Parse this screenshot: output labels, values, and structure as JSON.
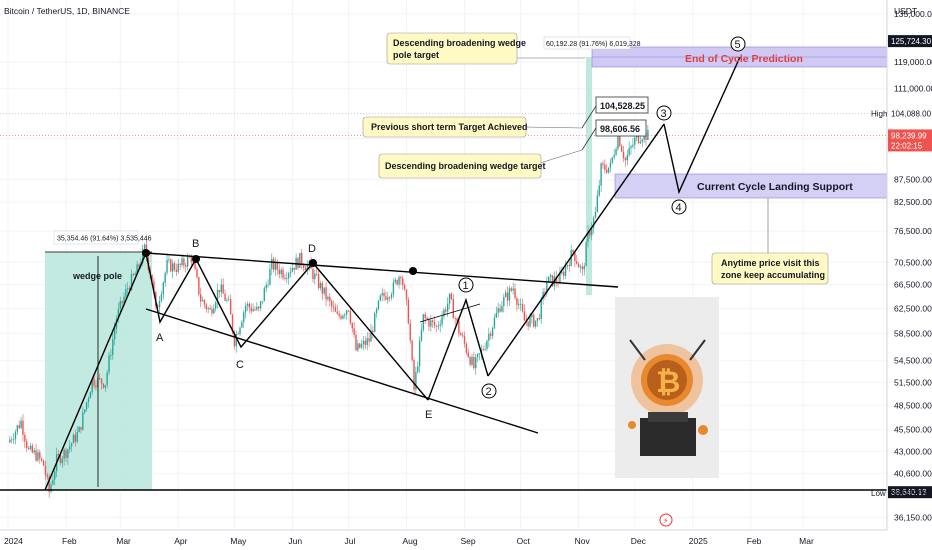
{
  "header": {
    "title": "Bitcoin / TetherUS, 1D, BINANCE"
  },
  "colors": {
    "up": "#26a69a",
    "down": "#ef5350",
    "zone": "#c9c4f0",
    "pole_fill": "#b7e4d8",
    "red_text": "#e53935",
    "label_bg": "#131722"
  },
  "chart_data": {
    "type": "candlestick",
    "y_scale": "log",
    "ylim": [
      35000,
      140000
    ],
    "currency": "USDT",
    "y_ticks": [
      "135,000.00",
      "119,000.00",
      "111,000.00",
      "97,500.00",
      "87,500.00",
      "82,500.00",
      "76,500.00",
      "70,500.00",
      "66,500.00",
      "62,500.00",
      "58,500.00",
      "54,500.00",
      "51,500.00",
      "48,500.00",
      "45,500.00",
      "43,000.00",
      "40,600.00",
      "36,150.00"
    ],
    "y_tick_values": [
      135000,
      119000,
      111000,
      97500,
      87500,
      82500,
      76500,
      70500,
      66500,
      62500,
      58500,
      54500,
      51500,
      48500,
      45500,
      43000,
      40600,
      36150
    ],
    "x_ticks": [
      "2024",
      "Feb",
      "Mar",
      "Apr",
      "May",
      "Jun",
      "Jul",
      "Aug",
      "Sep",
      "Oct",
      "Nov",
      "Dec",
      "2025",
      "Feb",
      "Mar"
    ],
    "x_tick_dates": [
      "2024-01-01",
      "2024-02-01",
      "2024-03-01",
      "2024-04-01",
      "2024-05-01",
      "2024-06-01",
      "2024-07-01",
      "2024-08-01",
      "2024-09-01",
      "2024-10-01",
      "2024-11-01",
      "2024-12-01",
      "2025-01-01",
      "2025-02-01",
      "2025-03-01"
    ],
    "price_labels": [
      {
        "value": 125724.3,
        "text": "125,724.30",
        "style": "dark"
      },
      {
        "value": 104088.0,
        "text": "104,088.00",
        "prefix": "High",
        "style": "plain"
      },
      {
        "value": 98239.99,
        "text": "98,239.99",
        "sub": "22:02:15",
        "style": "red"
      },
      {
        "value": 38640.13,
        "text": "38,640.13",
        "style": "dark"
      },
      {
        "value": 38555.0,
        "text": "38,555.00",
        "prefix": "Low",
        "style": "plain"
      }
    ],
    "closes": [
      [
        "2024-01-01",
        44000
      ],
      [
        "2024-01-08",
        46500
      ],
      [
        "2024-01-12",
        43000
      ],
      [
        "2024-01-16",
        42600
      ],
      [
        "2024-01-20",
        41500
      ],
      [
        "2024-01-23",
        38700
      ],
      [
        "2024-01-27",
        42000
      ],
      [
        "2024-02-01",
        43000
      ],
      [
        "2024-02-08",
        45300
      ],
      [
        "2024-02-15",
        51800
      ],
      [
        "2024-02-22",
        51500
      ],
      [
        "2024-02-28",
        61000
      ],
      [
        "2024-03-05",
        66000
      ],
      [
        "2024-03-10",
        69000
      ],
      [
        "2024-03-14",
        73000
      ],
      [
        "2024-03-18",
        67500
      ],
      [
        "2024-03-20",
        62000
      ],
      [
        "2024-03-26",
        70000
      ],
      [
        "2024-04-01",
        69500
      ],
      [
        "2024-04-08",
        71500
      ],
      [
        "2024-04-13",
        64000
      ],
      [
        "2024-04-18",
        62000
      ],
      [
        "2024-04-23",
        66000
      ],
      [
        "2024-04-28",
        63000
      ],
      [
        "2024-05-01",
        57500
      ],
      [
        "2024-05-07",
        63000
      ],
      [
        "2024-05-14",
        62000
      ],
      [
        "2024-05-21",
        70000
      ],
      [
        "2024-05-28",
        68500
      ],
      [
        "2024-06-05",
        71000
      ],
      [
        "2024-06-10",
        69500
      ],
      [
        "2024-06-18",
        65000
      ],
      [
        "2024-06-25",
        61000
      ],
      [
        "2024-07-01",
        62800
      ],
      [
        "2024-07-05",
        56000
      ],
      [
        "2024-07-12",
        57500
      ],
      [
        "2024-07-18",
        64000
      ],
      [
        "2024-07-25",
        66000
      ],
      [
        "2024-07-29",
        68800
      ],
      [
        "2024-08-02",
        61000
      ],
      [
        "2024-08-05",
        50500
      ],
      [
        "2024-08-10",
        61000
      ],
      [
        "2024-08-17",
        59500
      ],
      [
        "2024-08-24",
        64000
      ],
      [
        "2024-08-29",
        59000
      ],
      [
        "2024-09-06",
        53500
      ],
      [
        "2024-09-12",
        57000
      ],
      [
        "2024-09-20",
        63000
      ],
      [
        "2024-09-27",
        66000
      ],
      [
        "2024-10-03",
        60500
      ],
      [
        "2024-10-10",
        60500
      ],
      [
        "2024-10-15",
        67000
      ],
      [
        "2024-10-22",
        67500
      ],
      [
        "2024-10-29",
        72500
      ],
      [
        "2024-11-03",
        68500
      ],
      [
        "2024-11-06",
        75500
      ],
      [
        "2024-11-10",
        80000
      ],
      [
        "2024-11-13",
        90000
      ],
      [
        "2024-11-18",
        90500
      ],
      [
        "2024-11-22",
        98500
      ],
      [
        "2024-11-26",
        92000
      ],
      [
        "2024-12-01",
        97000
      ],
      [
        "2024-12-05",
        98500
      ],
      [
        "2024-12-08",
        98240
      ]
    ]
  },
  "patterns": {
    "wave_points": [
      "A",
      "B",
      "C",
      "D",
      "E"
    ],
    "elliott_points": [
      "1",
      "2",
      "3",
      "4",
      "5"
    ],
    "pole_label": "wedge pole",
    "pole_measure": "35,354.46 (91.64%) 3,535,446",
    "target_measure": "60,192.28 (91.76%) 6,019,328"
  },
  "annotations": {
    "pole_target": [
      "Descending broadening wedge",
      "pole target"
    ],
    "short_target": "Previous short term Target Achieved",
    "wedge_target": "Descending broadening wedge target",
    "value_104": "104,528.25",
    "value_98": "98,606.56",
    "end_cycle": "End of Cycle Prediction",
    "landing_support": "Current Cycle Landing Support",
    "anytime": [
      "Anytime price visit this",
      "zone keep accumulating"
    ]
  }
}
